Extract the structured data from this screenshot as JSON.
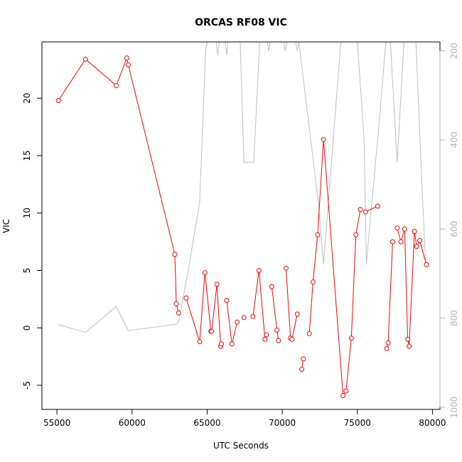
{
  "chart_data": {
    "type": "line",
    "title": "ORCAS RF08 VIC",
    "xlabel": "UTC Seconds",
    "ylabel": "VIC",
    "xlim": [
      54000,
      80500
    ],
    "ylim": [
      -7.1,
      24.9
    ],
    "y2lim": [
      1005,
      180
    ],
    "x_ticks": [
      55000,
      60000,
      65000,
      70000,
      75000,
      80000
    ],
    "y_ticks": [
      -5,
      0,
      5,
      10,
      15,
      20
    ],
    "y2_ticks": [
      200,
      400,
      600,
      800,
      1000
    ],
    "colors": {
      "vic": "#ff0000",
      "secondary": "#bebebe",
      "right_axis": "#b3b3b3"
    },
    "series": [
      {
        "role": "vic",
        "segments": [
          [
            [
              55100,
              19.8
            ],
            [
              56900,
              23.4
            ],
            [
              58950,
              21.1
            ],
            [
              59650,
              23.5
            ],
            [
              59750,
              22.9
            ],
            [
              62850,
              6.4
            ],
            [
              62950,
              2.1
            ],
            [
              63100,
              1.3
            ]
          ],
          [
            [
              63600,
              2.6
            ],
            [
              64500,
              -1.2
            ],
            [
              64850,
              4.8
            ],
            [
              65250,
              -0.3
            ],
            [
              65300,
              -0.3
            ],
            [
              65650,
              3.8
            ],
            [
              65900,
              -1.6
            ],
            [
              65950,
              -1.4
            ]
          ],
          [
            [
              66300,
              2.4
            ],
            [
              66650,
              -1.4
            ],
            [
              67000,
              0.5
            ]
          ],
          [
            [
              67450,
              0.9
            ]
          ],
          [
            [
              68050,
              1.0
            ],
            [
              68450,
              5.0
            ],
            [
              68850,
              -1.0
            ],
            [
              68950,
              -0.6
            ]
          ],
          [
            [
              69300,
              3.6
            ],
            [
              69650,
              -0.2
            ],
            [
              69750,
              -1.1
            ]
          ],
          [
            [
              70250,
              5.2
            ],
            [
              70550,
              -0.9
            ],
            [
              70650,
              -1.0
            ],
            [
              71000,
              1.2
            ]
          ],
          [
            [
              71300,
              -3.6
            ],
            [
              71400,
              -2.7
            ]
          ],
          [
            [
              71800,
              -0.5
            ],
            [
              72050,
              4.0
            ],
            [
              72350,
              8.1
            ],
            [
              72750,
              16.4
            ],
            [
              74050,
              -5.9
            ],
            [
              74250,
              -5.5
            ],
            [
              74600,
              -0.9
            ],
            [
              74900,
              8.1
            ],
            [
              75200,
              10.3
            ]
          ],
          [
            [
              75550,
              10.1
            ],
            [
              76350,
              10.6
            ]
          ],
          [
            [
              76950,
              -1.8
            ],
            [
              77050,
              -1.3
            ],
            [
              77350,
              7.5
            ]
          ],
          [
            [
              77650,
              8.7
            ],
            [
              77900,
              7.5
            ],
            [
              78150,
              8.6
            ],
            [
              78350,
              -1.0
            ],
            [
              78450,
              -1.6
            ],
            [
              78800,
              8.4
            ],
            [
              78950,
              7.1
            ],
            [
              79150,
              7.6
            ],
            [
              79600,
              5.5
            ]
          ]
        ]
      },
      {
        "role": "secondary",
        "axis": "right",
        "points": [
          [
            55100,
            815
          ],
          [
            56900,
            832
          ],
          [
            58950,
            774
          ],
          [
            59750,
            828
          ],
          [
            62950,
            814
          ],
          [
            63100,
            808
          ],
          [
            63700,
            700
          ],
          [
            64500,
            540
          ],
          [
            64900,
            200
          ],
          [
            65000,
            180
          ],
          [
            65600,
            180
          ],
          [
            65700,
            210
          ],
          [
            65800,
            180
          ],
          [
            66200,
            180
          ],
          [
            66300,
            210
          ],
          [
            66400,
            180
          ],
          [
            67200,
            180
          ],
          [
            67450,
            450
          ],
          [
            68100,
            450
          ],
          [
            68500,
            180
          ],
          [
            69000,
            180
          ],
          [
            69100,
            200
          ],
          [
            69200,
            180
          ],
          [
            70100,
            180
          ],
          [
            70200,
            200
          ],
          [
            70300,
            180
          ],
          [
            70900,
            180
          ],
          [
            71000,
            200
          ],
          [
            71100,
            180
          ],
          [
            72400,
            540
          ],
          [
            72750,
            680
          ],
          [
            73900,
            180
          ],
          [
            75000,
            180
          ],
          [
            75450,
            400
          ],
          [
            75600,
            680
          ],
          [
            75800,
            600
          ],
          [
            76400,
            380
          ],
          [
            76900,
            180
          ],
          [
            77200,
            180
          ],
          [
            77650,
            450
          ],
          [
            78100,
            180
          ],
          [
            78900,
            180
          ],
          [
            79300,
            500
          ],
          [
            79550,
            680
          ]
        ]
      }
    ]
  }
}
